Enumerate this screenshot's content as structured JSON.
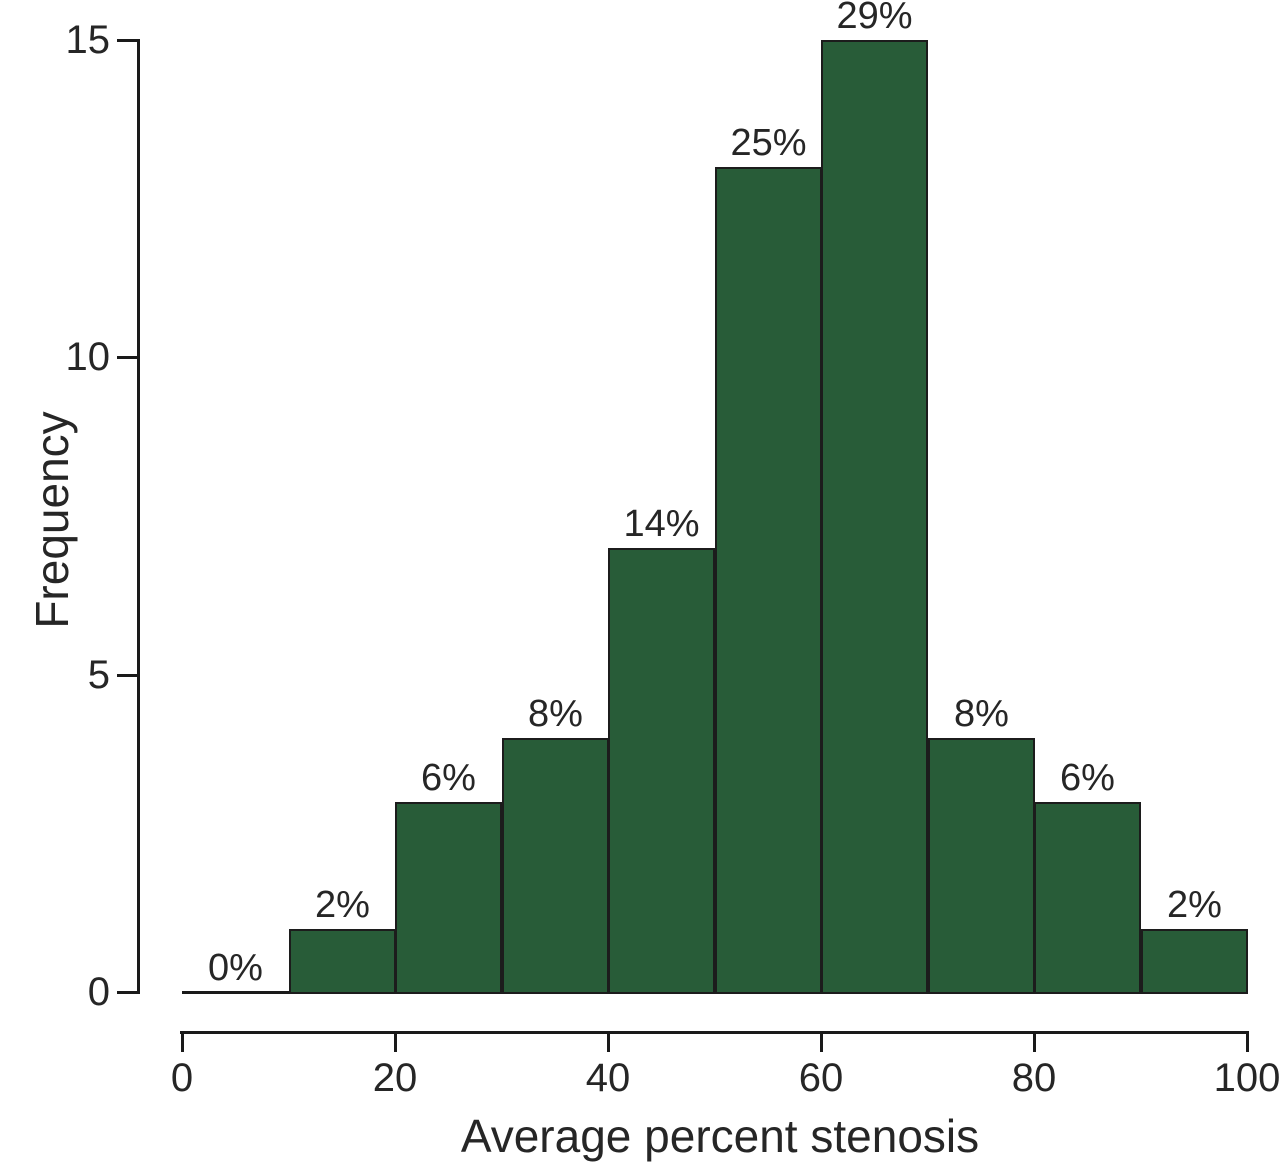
{
  "figure": {
    "background_color": "#ffffff",
    "text_color": "#262626",
    "axis_color": "#1a1a1a"
  },
  "chart_data": {
    "type": "bar",
    "subtype": "histogram",
    "title": "",
    "xlabel": "Average percent stenosis",
    "ylabel": "Frequency",
    "xlim": [
      0,
      100
    ],
    "ylim": [
      0,
      15
    ],
    "x_ticks": [
      0,
      20,
      40,
      60,
      80,
      100
    ],
    "y_ticks": [
      0,
      5,
      10,
      15
    ],
    "grid": false,
    "legend": null,
    "bin_width": 10,
    "bin_edges": [
      0,
      10,
      20,
      30,
      40,
      50,
      60,
      70,
      80,
      90,
      100
    ],
    "values": [
      0,
      1,
      3,
      4,
      7,
      13,
      15,
      4,
      3,
      1
    ],
    "bar_labels": [
      "0%",
      "2%",
      "6%",
      "8%",
      "14%",
      "25%",
      "29%",
      "8%",
      "6%",
      "2%"
    ],
    "bar_color": "#285c38",
    "bar_border_color": "#1c1c1c"
  }
}
